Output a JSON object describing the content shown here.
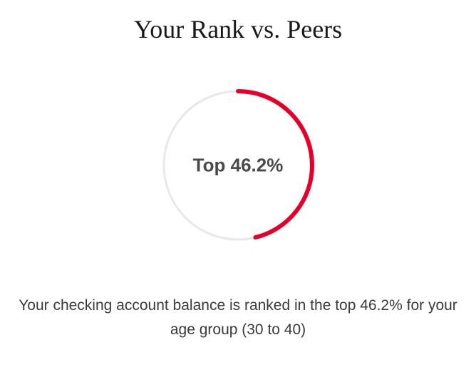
{
  "title": {
    "text": "Your Rank vs. Peers",
    "fontsize": 36,
    "color": "#1a1a1a"
  },
  "gauge": {
    "type": "donut-progress",
    "percent": 46.2,
    "label": "Top 46.2%",
    "label_fontsize": 26,
    "label_color": "#4a4a4a",
    "label_weight": 700,
    "size": 220,
    "stroke_width": 6,
    "track_color": "#e8e8e8",
    "progress_color": "#e4002b",
    "start_angle_deg": 0,
    "direction": "clockwise",
    "rounded_caps": true,
    "background_color": "#ffffff"
  },
  "caption": {
    "text": "Your checking account balance is ranked in the top 46.2% for your age group (30 to 40)",
    "fontsize": 21,
    "color": "#3a3a3a"
  }
}
